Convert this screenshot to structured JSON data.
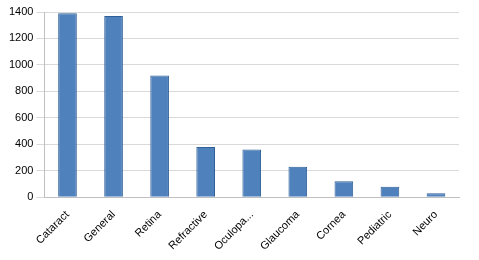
{
  "chart_data": {
    "type": "bar",
    "categories": [
      "Cataract",
      "General",
      "Retina",
      "Refractive",
      "Oculopa...",
      "Glaucoma",
      "Cornea",
      "Pediatric",
      "Neuro"
    ],
    "values": [
      1390,
      1370,
      920,
      380,
      360,
      230,
      120,
      80,
      30
    ],
    "color": "#4f81bd",
    "ylim": [
      0,
      1400
    ],
    "yticks": [
      0,
      200,
      400,
      600,
      800,
      1000,
      1200,
      1400
    ],
    "grid": true
  }
}
